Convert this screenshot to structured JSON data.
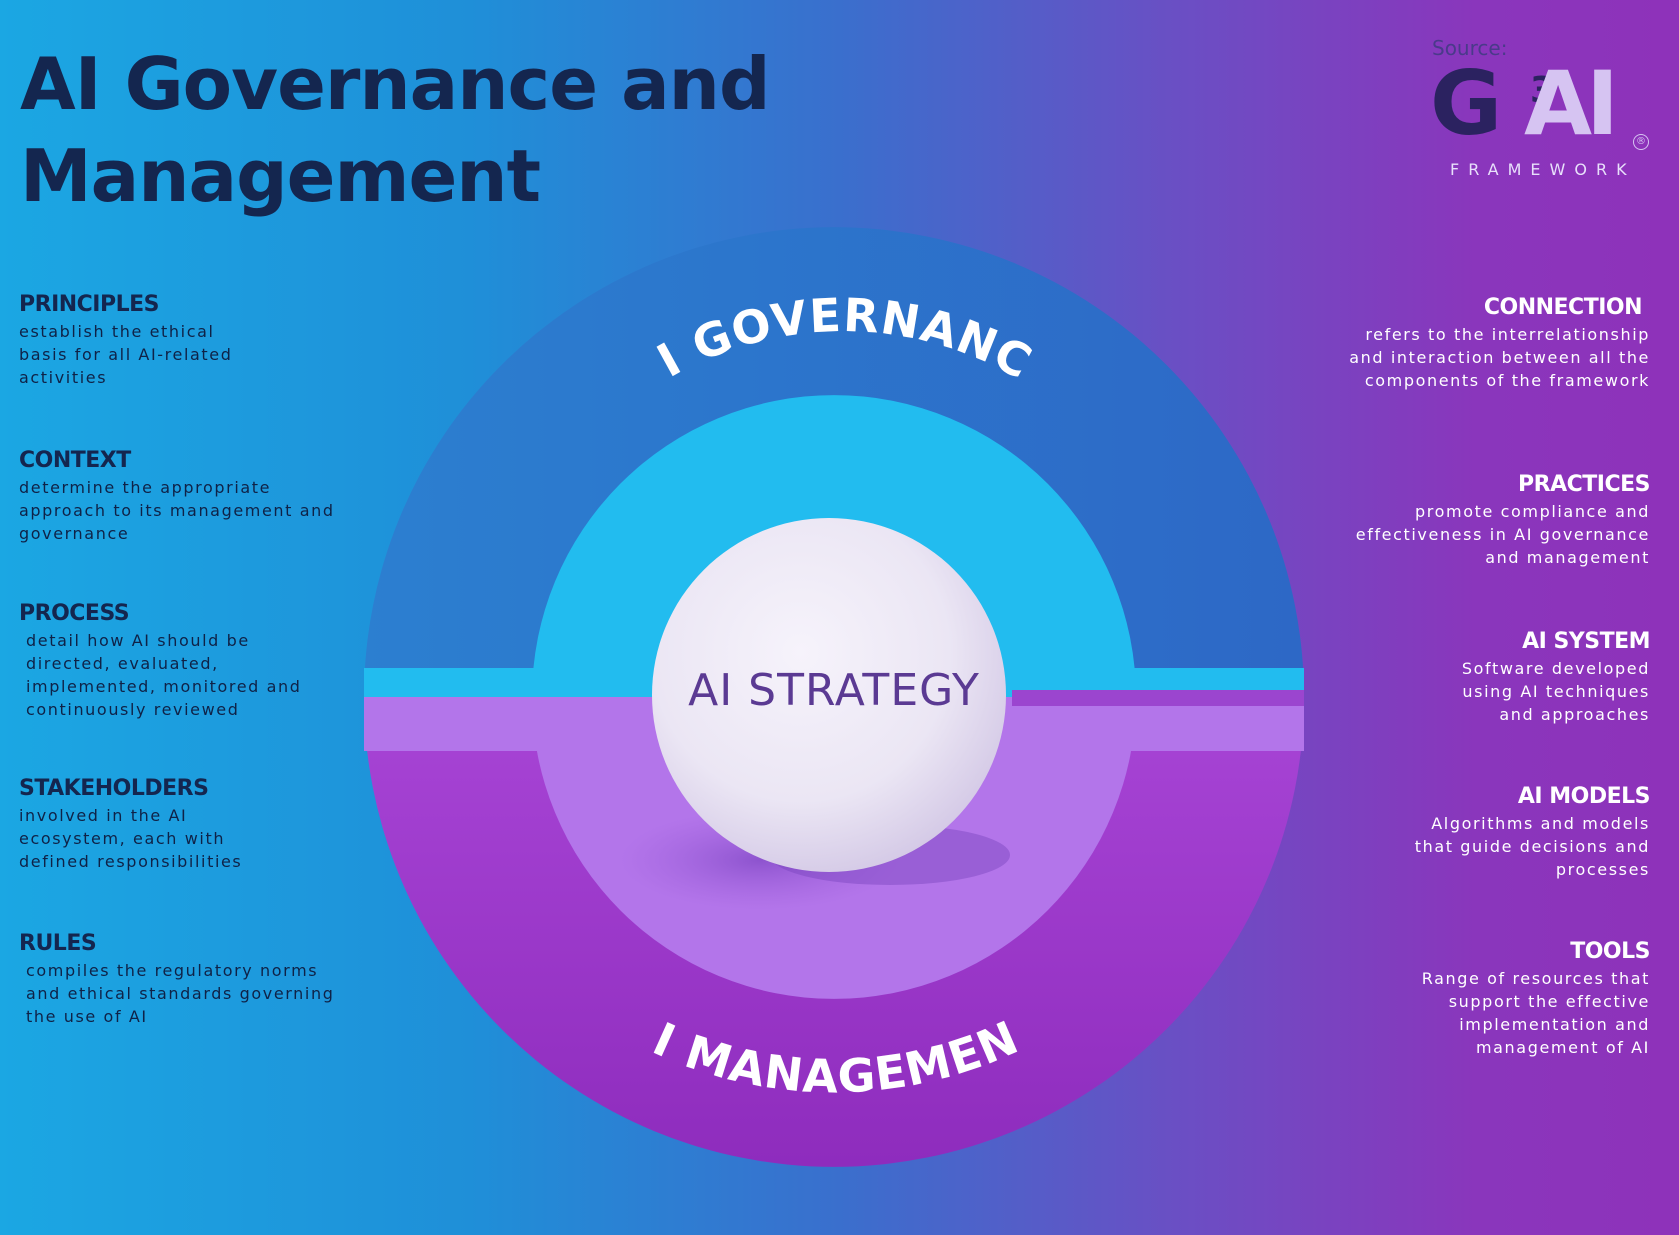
{
  "title": "AI Governance and Management",
  "source": {
    "label": "Source:",
    "logo_g": "G",
    "logo_sup": "3",
    "logo_ai": "AI",
    "logo_reg": "®",
    "logo_framework": "FRAMEWORK"
  },
  "diagram": {
    "outer_top_label": "AI GOVERNANCE",
    "outer_bottom_label": "AI MANAGEMENT",
    "core_label": "AI STRATEGY"
  },
  "left_items": [
    {
      "title": "PRINCIPLES",
      "desc": "establish the ethical basis for all AI-related activities"
    },
    {
      "title": "CONTEXT",
      "desc": "determine the appropriate approach to its management and governance"
    },
    {
      "title": "PROCESS",
      "desc": "detail how AI should be directed, evaluated, implemented, monitored and continuously reviewed"
    },
    {
      "title": "STAKEHOLDERS",
      "desc": "involved in the AI ecosystem, each with defined responsibilities"
    },
    {
      "title": "RULES",
      "desc": "compiles the regulatory norms and ethical standards governing the use of AI"
    }
  ],
  "right_items": [
    {
      "title": "CONNECTION",
      "desc": "refers to the interrelationship and interaction between all the components of the framework"
    },
    {
      "title": "PRACTICES",
      "desc": "promote compliance and effectiveness in AI governance and management"
    },
    {
      "title": "AI SYSTEM",
      "desc": "Software developed using AI techniques and approaches"
    },
    {
      "title": "AI MODELS",
      "desc": "Algorithms and models that guide decisions and processes"
    },
    {
      "title": "TOOLS",
      "desc": "Range of resources that support the effective implementation and management of AI"
    }
  ],
  "colors": {
    "governance_ring": "#2d73c8",
    "inner_top": "#22bcef",
    "inner_bottom": "#b375ea",
    "management_ring": "#9a36c4",
    "title_text": "#14264f"
  }
}
